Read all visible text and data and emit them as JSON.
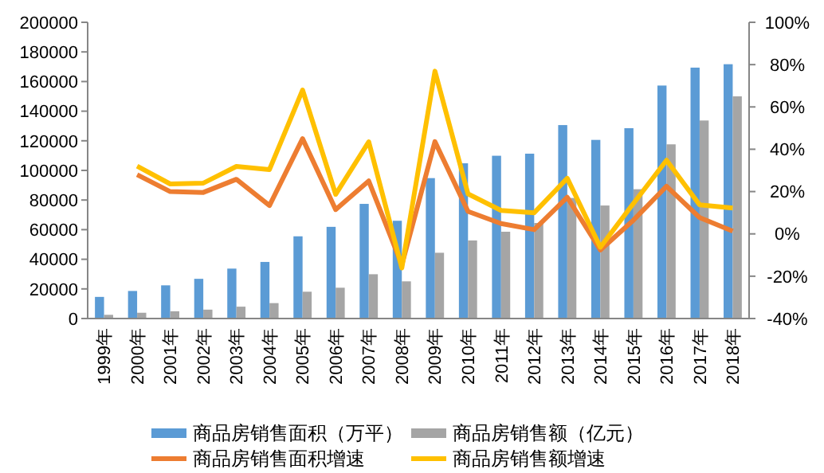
{
  "chart_data": {
    "type": "bar",
    "categories": [
      "1999年",
      "2000年",
      "2001年",
      "2002年",
      "2003年",
      "2004年",
      "2005年",
      "2006年",
      "2007年",
      "2008年",
      "2009年",
      "2010年",
      "2011年",
      "2012年",
      "2013年",
      "2014年",
      "2015年",
      "2016年",
      "2017年",
      "2018年"
    ],
    "series": [
      {
        "name": "商品房销售面积（万平）",
        "color": "#5b9bd5",
        "values": [
          14600,
          18600,
          22400,
          26800,
          33700,
          38200,
          55500,
          61900,
          77400,
          66000,
          94800,
          104800,
          109900,
          111300,
          130600,
          120600,
          128500,
          157300,
          169400,
          171700
        ]
      },
      {
        "name": "商品房销售额（亿元）",
        "color": "#a5a5a5",
        "values": [
          2500,
          3900,
          4900,
          6000,
          8000,
          10400,
          18100,
          20800,
          29900,
          25100,
          44400,
          52700,
          58600,
          64500,
          81400,
          76300,
          87300,
          117600,
          133700,
          150000
        ]
      },
      {
        "name": "商品房销售面积增速",
        "type": "line",
        "axis": "y2",
        "color": "#ed7d31",
        "values": [
          null,
          28,
          20,
          19.6,
          25.8,
          13.4,
          45,
          11.5,
          25,
          -14.7,
          43.6,
          10.6,
          4.9,
          2,
          17.3,
          -7.6,
          6.5,
          22.5,
          7.7,
          1.3
        ]
      },
      {
        "name": "商品房销售额增速",
        "type": "line",
        "axis": "y2",
        "color": "#ffc000",
        "values": [
          null,
          32,
          23.6,
          24,
          31.9,
          30.4,
          68,
          18.7,
          43.5,
          -16.1,
          76.9,
          18.9,
          11.1,
          10,
          26.3,
          -6.3,
          14.4,
          34.8,
          13.7,
          12.2
        ]
      }
    ],
    "ylim": [
      0,
      200000
    ],
    "yticks": [
      0,
      20000,
      40000,
      60000,
      80000,
      100000,
      120000,
      140000,
      160000,
      180000,
      200000
    ],
    "y2lim": [
      -40,
      100
    ],
    "y2ticks": [
      {
        "value": -40,
        "label": "-40%"
      },
      {
        "value": -20,
        "label": "-20%"
      },
      {
        "value": 0,
        "label": "0%"
      },
      {
        "value": 20,
        "label": "20%"
      },
      {
        "value": 40,
        "label": "40%"
      },
      {
        "value": 60,
        "label": "60%"
      },
      {
        "value": 80,
        "label": "80%"
      },
      {
        "value": 100,
        "label": "100%"
      }
    ],
    "grid": false,
    "legend": "bottom"
  }
}
